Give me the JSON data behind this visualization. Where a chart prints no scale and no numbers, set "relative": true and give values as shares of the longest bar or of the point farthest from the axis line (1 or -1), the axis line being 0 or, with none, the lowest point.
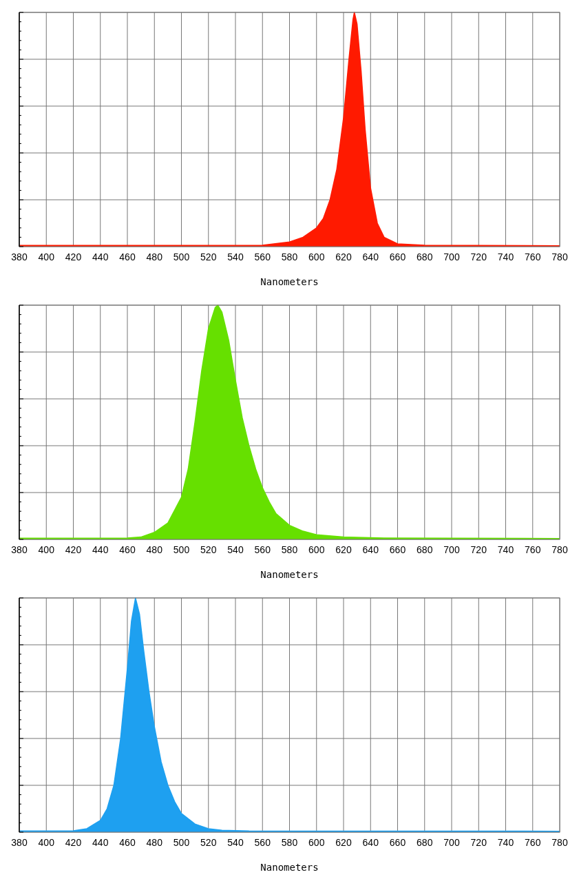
{
  "chart_data": [
    {
      "type": "area",
      "relative": true,
      "xlabel": "Nanometers",
      "xlim": [
        380,
        780
      ],
      "xticks": [
        380,
        400,
        420,
        440,
        460,
        480,
        500,
        520,
        540,
        560,
        580,
        600,
        620,
        640,
        660,
        680,
        700,
        720,
        740,
        760,
        780
      ],
      "grid": true,
      "tick_labels": "x",
      "series": [
        {
          "color": "#ff1a00",
          "x": [
            380,
            440,
            500,
            560,
            580,
            590,
            600,
            605,
            610,
            615,
            620,
            624,
            627,
            628,
            630,
            633,
            636,
            640,
            645,
            650,
            660,
            680,
            780
          ],
          "values": [
            0.005,
            0.005,
            0.005,
            0.006,
            0.02,
            0.04,
            0.08,
            0.12,
            0.2,
            0.33,
            0.55,
            0.8,
            0.97,
            1,
            0.95,
            0.75,
            0.5,
            0.25,
            0.1,
            0.04,
            0.012,
            0.006,
            0.004
          ]
        }
      ]
    },
    {
      "type": "area",
      "relative": true,
      "xlabel": "Nanometers",
      "xlim": [
        380,
        780
      ],
      "xticks": [
        380,
        400,
        420,
        440,
        460,
        480,
        500,
        520,
        540,
        560,
        580,
        600,
        620,
        640,
        660,
        680,
        700,
        720,
        740,
        760,
        780
      ],
      "grid": true,
      "tick_labels": "x",
      "series": [
        {
          "color": "#66e000",
          "x": [
            380,
            460,
            470,
            480,
            490,
            500,
            505,
            510,
            515,
            520,
            525,
            527,
            530,
            535,
            540,
            545,
            550,
            555,
            560,
            565,
            570,
            580,
            590,
            600,
            620,
            650,
            780
          ],
          "values": [
            0.005,
            0.006,
            0.01,
            0.03,
            0.07,
            0.18,
            0.3,
            0.5,
            0.72,
            0.9,
            0.99,
            1,
            0.97,
            0.85,
            0.68,
            0.52,
            0.4,
            0.3,
            0.22,
            0.16,
            0.11,
            0.06,
            0.035,
            0.02,
            0.01,
            0.006,
            0.004
          ]
        }
      ]
    },
    {
      "type": "area",
      "relative": true,
      "xlabel": "Nanometers",
      "xlim": [
        380,
        780
      ],
      "xticks": [
        380,
        400,
        420,
        440,
        460,
        480,
        500,
        520,
        540,
        560,
        580,
        600,
        620,
        640,
        660,
        680,
        700,
        720,
        740,
        760,
        780
      ],
      "grid": true,
      "tick_labels": "x",
      "series": [
        {
          "color": "#1ea0f0",
          "x": [
            380,
            420,
            430,
            440,
            445,
            450,
            455,
            460,
            463,
            466,
            469,
            472,
            476,
            480,
            485,
            490,
            495,
            500,
            510,
            520,
            530,
            550,
            780
          ],
          "values": [
            0.005,
            0.006,
            0.015,
            0.05,
            0.1,
            0.2,
            0.4,
            0.7,
            0.9,
            1,
            0.93,
            0.78,
            0.6,
            0.45,
            0.3,
            0.2,
            0.13,
            0.08,
            0.035,
            0.015,
            0.008,
            0.005,
            0.004
          ]
        }
      ]
    }
  ]
}
